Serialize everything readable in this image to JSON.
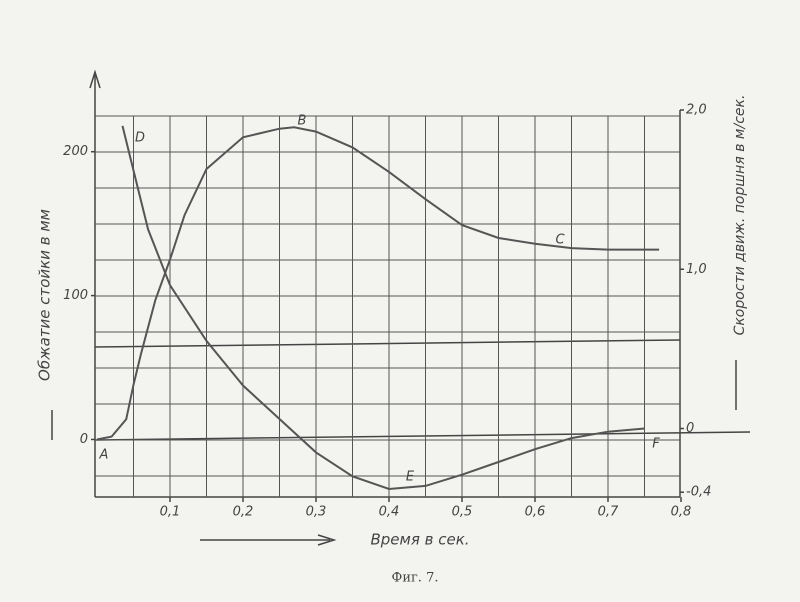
{
  "chart_data": {
    "type": "line",
    "caption": "Фиг. 7.",
    "x_label": "Время в сек.",
    "y_label": "Обжатие стойки в мм",
    "y2_label": "Скорости движ. поршня в м/сек.",
    "xlim": [
      0,
      0.8
    ],
    "xticks": [
      {
        "value": 0.1,
        "label": "0,1"
      },
      {
        "value": 0.2,
        "label": "0,2"
      },
      {
        "value": 0.3,
        "label": "0,3"
      },
      {
        "value": 0.4,
        "label": "0,4"
      },
      {
        "value": 0.5,
        "label": "0,5"
      },
      {
        "value": 0.6,
        "label": "0,6"
      },
      {
        "value": 0.7,
        "label": "0,7"
      },
      {
        "value": 0.8,
        "label": "0,8"
      }
    ],
    "ylim": [
      -40,
      229
    ],
    "yticks": [
      0,
      100,
      200
    ],
    "y2lim": [
      -0.43,
      2.0
    ],
    "y2ticks": [
      {
        "value": 2.0,
        "label": "2,0"
      },
      {
        "value": 1.0,
        "label": "1,0"
      },
      0,
      {
        "value": -0.4,
        "label": "-0,4"
      }
    ],
    "grid": true,
    "series": [
      {
        "color": "#555555",
        "x": [
          0,
          0.02,
          0.04,
          0.05,
          0.06,
          0.08,
          0.1,
          0.12,
          0.15,
          0.2,
          0.25,
          0.27,
          0.3,
          0.35,
          0.4,
          0.45,
          0.5,
          0.55,
          0.6,
          0.65,
          0.7,
          0.77
        ],
        "values": [
          0,
          2,
          14,
          38,
          59,
          97,
          125,
          156,
          188,
          210,
          216,
          217,
          214,
          203,
          186,
          167,
          149,
          140,
          136,
          133,
          132,
          132
        ]
      },
      {
        "color": "#555555",
        "axis": "y2",
        "x": [
          0.035,
          0.05,
          0.07,
          0.1,
          0.15,
          0.2,
          0.25,
          0.3,
          0.35,
          0.4,
          0.45,
          0.5,
          0.55,
          0.6,
          0.65,
          0.7,
          0.75
        ],
        "values": [
          1.9,
          1.62,
          1.25,
          0.9,
          0.55,
          0.27,
          0.06,
          -0.15,
          -0.3,
          -0.38,
          -0.36,
          -0.29,
          -0.21,
          -0.13,
          -0.06,
          -0.02,
          0
        ]
      }
    ],
    "annotations": [
      "A",
      "B",
      "C",
      "D",
      "E",
      "F"
    ]
  }
}
